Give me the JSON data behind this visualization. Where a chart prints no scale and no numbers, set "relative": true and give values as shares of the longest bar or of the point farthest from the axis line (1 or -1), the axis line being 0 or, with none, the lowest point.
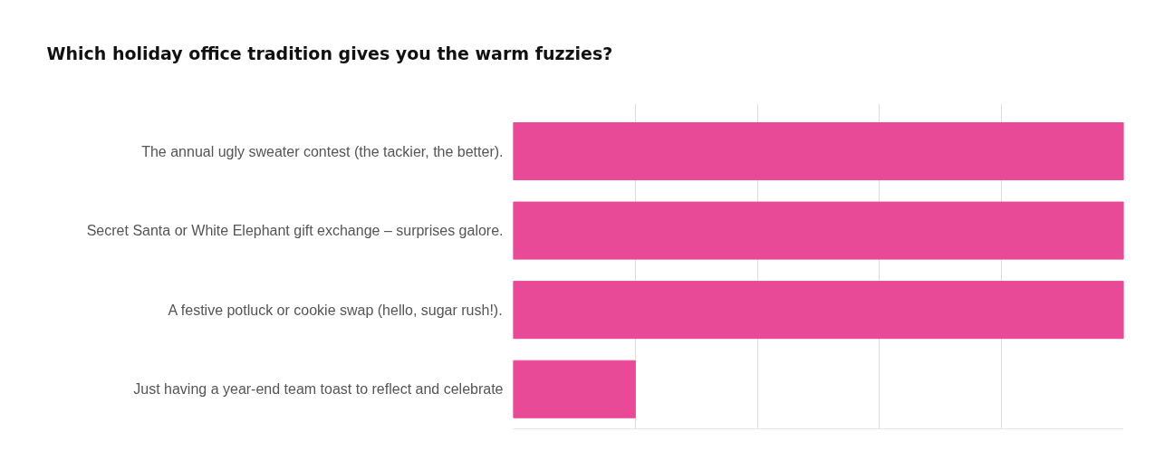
{
  "chart_data": {
    "type": "bar",
    "orientation": "horizontal",
    "relative": true,
    "title": "Which holiday office tradition gives you the warm fuzzies?",
    "categories": [
      "The annual ugly sweater contest (the tackier, the better).",
      "Secret Santa or White Elephant gift exchange – surprises galore.",
      "A festive potluck or cookie swap (hello, sugar rush!).",
      "Just having a year-end team toast to reflect and celebrate"
    ],
    "values": [
      1,
      1,
      1,
      0.2
    ],
    "color": "#e84a97",
    "grid": "x"
  }
}
